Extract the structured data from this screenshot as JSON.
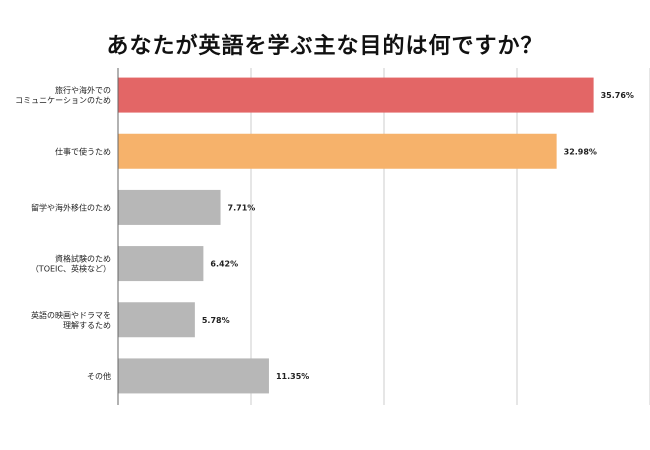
{
  "chart_data": {
    "type": "bar",
    "orientation": "horizontal",
    "title": "あなたが英語を学ぶ主な目的は何ですか？",
    "categories": [
      [
        "旅行や海外での",
        "コミュニケーションのため"
      ],
      [
        "仕事で使うため"
      ],
      [
        "留学や海外移住のため"
      ],
      [
        "資格試験のため",
        "（TOEIC、英検など）"
      ],
      [
        "英語の映画やドラマを",
        "理解するため"
      ],
      [
        "その他"
      ]
    ],
    "values": [
      35.76,
      32.98,
      7.71,
      6.42,
      5.78,
      11.35
    ],
    "value_labels": [
      "35.76%",
      "32.98%",
      "7.71%",
      "6.42%",
      "5.78%",
      "11.35%"
    ],
    "colors": [
      "#e36666",
      "#f6b26b",
      "#b7b7b7",
      "#b7b7b7",
      "#b7b7b7",
      "#b7b7b7"
    ],
    "xlim": [
      0,
      40
    ],
    "x_gridlines": [
      0,
      10,
      20,
      30,
      40
    ],
    "grid": true,
    "legend": "none"
  }
}
